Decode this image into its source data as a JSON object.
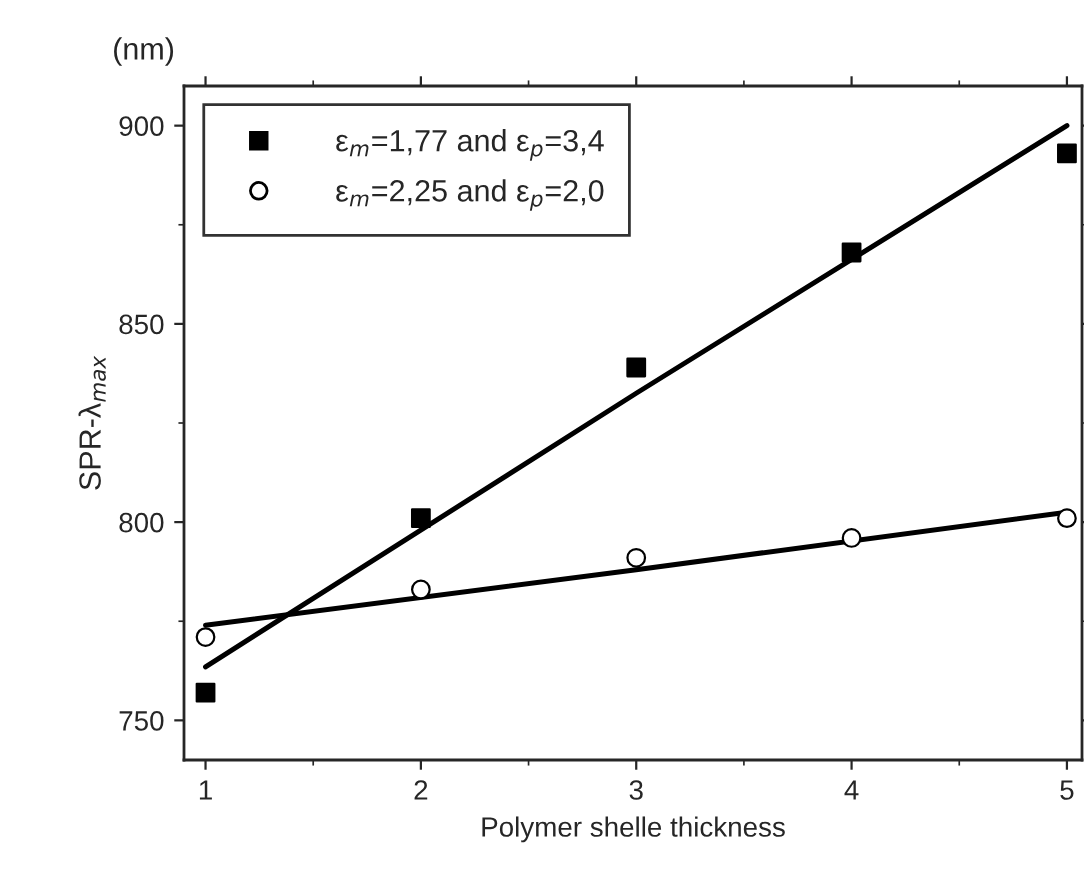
{
  "chart_data": {
    "type": "scatter",
    "xlabel": "Polymer shelle thickness",
    "ylabel": "SPR-λ$_{max}$",
    "annotations": [
      "(nm)"
    ],
    "x": [
      1,
      2,
      3,
      4,
      5
    ],
    "series": [
      {
        "name": "ε$_{m}$=1,77 and ε$_{p}$=3,4",
        "color": "#000000",
        "marker": "square",
        "values": [
          757,
          801,
          839,
          868,
          893
        ]
      },
      {
        "name": "ε$_{m}$=2,25 and ε$_{p}$=2,0",
        "color": "#000000",
        "marker": "circle",
        "values": [
          771,
          783,
          791,
          796,
          801
        ]
      },
      {
        "type": "line",
        "color": "#000000",
        "x": [
          1,
          3,
          5
        ],
        "values": [
          763.5,
          832.5,
          900
        ],
        "line_style": "solid"
      },
      {
        "type": "line",
        "color": "#000000",
        "x": [
          1,
          3,
          5
        ],
        "values": [
          774,
          788,
          802.5
        ],
        "line_style": "solid"
      }
    ],
    "xlim": [
      0.9,
      5.07
    ],
    "ylim": [
      740,
      910
    ],
    "xticks": [
      1,
      2,
      3,
      4,
      5
    ],
    "yticks": [
      750,
      800,
      850,
      900
    ],
    "grid": false,
    "legend": "top left"
  }
}
